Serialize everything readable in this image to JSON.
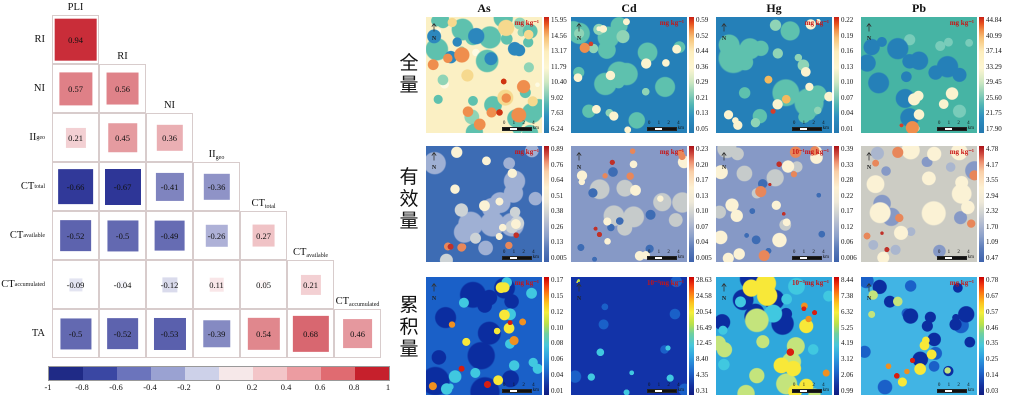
{
  "correlation_matrix": {
    "column_headers": [
      {
        "main": "PLI",
        "sub": ""
      },
      {
        "main": "RI",
        "sub": ""
      },
      {
        "main": "NI",
        "sub": ""
      },
      {
        "main": "II",
        "sub": "geo"
      },
      {
        "main": "CT",
        "sub": "total"
      },
      {
        "main": "CT",
        "sub": "available"
      },
      {
        "main": "CT",
        "sub": "accumulated"
      }
    ],
    "row_headers": [
      {
        "main": "RI",
        "sub": ""
      },
      {
        "main": "NI",
        "sub": ""
      },
      {
        "main": "II",
        "sub": "geo"
      },
      {
        "main": "CT",
        "sub": "total"
      },
      {
        "main": "CT",
        "sub": "available"
      },
      {
        "main": "CT",
        "sub": "accumulated"
      },
      {
        "main": "TA",
        "sub": ""
      }
    ],
    "values": [
      [
        "0.94"
      ],
      [
        "0.57",
        "0.56"
      ],
      [
        "0.21",
        "0.45",
        "0.36"
      ],
      [
        "-0.66",
        "-0.67",
        "-0.41",
        "-0.36"
      ],
      [
        "-0.52",
        "-0.5",
        "-0.49",
        "-0.26",
        "0.27"
      ],
      [
        "-0.09",
        "-0.04",
        "-0.12",
        "0.11",
        "0.05",
        "0.21"
      ],
      [
        "-0.5",
        "-0.52",
        "-0.53",
        "-0.39",
        "0.54",
        "0.68",
        "0.46"
      ]
    ],
    "colorbar_ticks": [
      "-1",
      "-0.8",
      "-0.6",
      "-0.4",
      "-0.2",
      "0",
      "0.2",
      "0.4",
      "0.6",
      "0.8",
      "1"
    ],
    "colorbar_colors": [
      "#1f2a86",
      "#3a47a3",
      "#6b74bc",
      "#9aa2d2",
      "#cdd1e9",
      "#f6e8e9",
      "#f3c5c8",
      "#ec9ca1",
      "#e06b71",
      "#c6202c"
    ],
    "positive_color": "#c6202c",
    "negative_color": "#283094"
  },
  "maps_panel": {
    "column_titles": [
      "As",
      "Cd",
      "Hg",
      "Pb"
    ],
    "row_labels": [
      "全量",
      "有效量",
      "累积量"
    ],
    "north_label": "N",
    "scalebar": {
      "ticks": "0 1 2 4",
      "unit": "km"
    },
    "cells": [
      {
        "element": "As",
        "row_label": "全量",
        "unit": "mg kg⁻¹",
        "ticks": [
          "15.95",
          "14.56",
          "13.17",
          "11.79",
          "10.40",
          "9.02",
          "7.63",
          "6.24"
        ]
      },
      {
        "element": "Cd",
        "row_label": "全量",
        "unit": "mg kg⁻¹",
        "ticks": [
          "0.59",
          "0.52",
          "0.44",
          "0.36",
          "0.29",
          "0.21",
          "0.13",
          "0.05"
        ]
      },
      {
        "element": "Hg",
        "row_label": "全量",
        "unit": "mg kg⁻¹",
        "ticks": [
          "0.22",
          "0.19",
          "0.16",
          "0.13",
          "0.10",
          "0.07",
          "0.04",
          "0.01"
        ]
      },
      {
        "element": "Pb",
        "row_label": "全量",
        "unit": "mg kg⁻¹",
        "ticks": [
          "44.84",
          "40.99",
          "37.14",
          "33.29",
          "29.45",
          "25.60",
          "21.75",
          "17.90"
        ]
      },
      {
        "element": "As",
        "row_label": "有效量",
        "unit": "mg kg⁻¹",
        "ticks": [
          "0.89",
          "0.76",
          "0.64",
          "0.51",
          "0.38",
          "0.26",
          "0.13",
          "0.005"
        ]
      },
      {
        "element": "Cd",
        "row_label": "有效量",
        "unit": "mg kg⁻¹",
        "ticks": [
          "0.23",
          "0.20",
          "0.17",
          "0.13",
          "0.10",
          "0.07",
          "0.04",
          "0.005"
        ]
      },
      {
        "element": "Hg",
        "row_label": "有效量",
        "unit": "10⁻¹mg kg⁻¹",
        "ticks": [
          "0.39",
          "0.33",
          "0.28",
          "0.22",
          "0.17",
          "0.12",
          "0.06",
          "0.006"
        ]
      },
      {
        "element": "Pb",
        "row_label": "有效量",
        "unit": "mg kg⁻¹",
        "ticks": [
          "4.78",
          "4.17",
          "3.55",
          "2.94",
          "2.32",
          "1.70",
          "1.09",
          "0.47"
        ]
      },
      {
        "element": "As",
        "row_label": "累积量",
        "unit": "mg kg⁻¹",
        "ticks": [
          "0.17",
          "0.15",
          "0.12",
          "0.10",
          "0.08",
          "0.06",
          "0.04",
          "0.01"
        ]
      },
      {
        "element": "Cd",
        "row_label": "累积量",
        "unit": "10⁻³mg kg⁻¹",
        "ticks": [
          "28.63",
          "24.58",
          "20.54",
          "16.49",
          "12.45",
          "8.40",
          "4.35",
          "0.31"
        ]
      },
      {
        "element": "Hg",
        "row_label": "累积量",
        "unit": "10⁻³mg kg⁻¹",
        "ticks": [
          "8.44",
          "7.38",
          "6.32",
          "5.25",
          "4.19",
          "3.12",
          "2.06",
          "0.99"
        ]
      },
      {
        "element": "Pb",
        "row_label": "累积量",
        "unit": "mg kg⁻¹",
        "ticks": [
          "0.78",
          "0.67",
          "0.57",
          "0.46",
          "0.35",
          "0.25",
          "0.14",
          "0.03"
        ]
      }
    ]
  },
  "chart_data": [
    {
      "type": "heatmap",
      "name": "correlation-matrix",
      "description": "Lower-triangular correlation matrix, square size and color encode r",
      "x_labels": [
        "PLI",
        "RI",
        "NI",
        "IIgeo",
        "CTtotal",
        "CTavailable",
        "CTaccumulated"
      ],
      "y_labels": [
        "RI",
        "NI",
        "IIgeo",
        "CTtotal",
        "CTavailable",
        "CTaccumulated",
        "TA"
      ],
      "values": [
        [
          0.94
        ],
        [
          0.57,
          0.56
        ],
        [
          0.21,
          0.45,
          0.36
        ],
        [
          -0.66,
          -0.67,
          -0.41,
          -0.36
        ],
        [
          -0.52,
          -0.5,
          -0.49,
          -0.26,
          0.27
        ],
        [
          -0.09,
          -0.04,
          -0.12,
          0.11,
          0.05,
          0.21
        ],
        [
          -0.5,
          -0.52,
          -0.53,
          -0.39,
          0.54,
          0.68,
          0.46
        ]
      ],
      "colorbar_range": [
        -1,
        1
      ],
      "colorbar_ticks": [
        -1,
        -0.8,
        -0.6,
        -0.4,
        -0.2,
        0,
        0.2,
        0.4,
        0.6,
        0.8,
        1
      ],
      "legend_position": "bottom"
    },
    {
      "type": "heatmap",
      "name": "spatial-distribution-grid",
      "description": "3x4 grid of interpolated soil heavy-metal concentration maps",
      "columns": [
        "As",
        "Cd",
        "Hg",
        "Pb"
      ],
      "rows": [
        "全量",
        "有效量",
        "累积量"
      ],
      "cells": [
        {
          "element": "As",
          "row": "全量",
          "unit": "mg kg⁻¹",
          "min": 6.24,
          "max": 15.95
        },
        {
          "element": "Cd",
          "row": "全量",
          "unit": "mg kg⁻¹",
          "min": 0.05,
          "max": 0.59
        },
        {
          "element": "Hg",
          "row": "全量",
          "unit": "mg kg⁻¹",
          "min": 0.01,
          "max": 0.22
        },
        {
          "element": "Pb",
          "row": "全量",
          "unit": "mg kg⁻¹",
          "min": 17.9,
          "max": 44.84
        },
        {
          "element": "As",
          "row": "有效量",
          "unit": "mg kg⁻¹",
          "min": 0.005,
          "max": 0.89
        },
        {
          "element": "Cd",
          "row": "有效量",
          "unit": "mg kg⁻¹",
          "min": 0.005,
          "max": 0.23
        },
        {
          "element": "Hg",
          "row": "有效量",
          "unit": "10⁻¹mg kg⁻¹",
          "min": 0.006,
          "max": 0.39
        },
        {
          "element": "Pb",
          "row": "有效量",
          "unit": "mg kg⁻¹",
          "min": 0.47,
          "max": 4.78
        },
        {
          "element": "As",
          "row": "累积量",
          "unit": "mg kg⁻¹",
          "min": 0.01,
          "max": 0.17
        },
        {
          "element": "Cd",
          "row": "累积量",
          "unit": "10⁻³mg kg⁻¹",
          "min": 0.31,
          "max": 28.63
        },
        {
          "element": "Hg",
          "row": "累积量",
          "unit": "10⁻³mg kg⁻¹",
          "min": 0.99,
          "max": 8.44
        },
        {
          "element": "Pb",
          "row": "累积量",
          "unit": "mg kg⁻¹",
          "min": 0.03,
          "max": 0.78
        }
      ],
      "scale_bar": "0 1 2 4 km"
    }
  ]
}
